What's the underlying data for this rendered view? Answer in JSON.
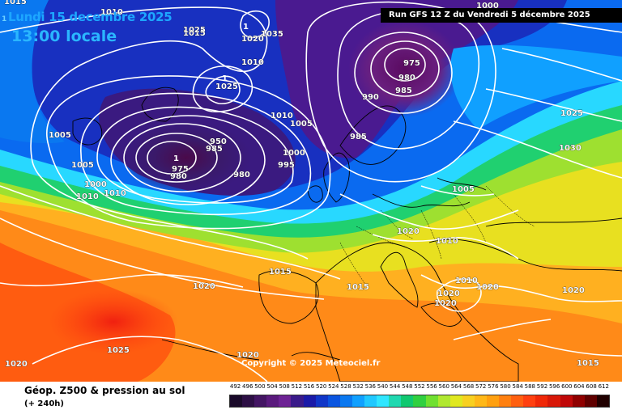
{
  "header": {
    "date_prefix": "1",
    "date_text": "Lundi 15 decembre 2025",
    "time_text": "13:00 locale",
    "run_text": "Run GFS 12 Z du Vendredi 5 décembre 2025"
  },
  "copyright": "Copyright © 2025 Meteociel.fr",
  "legend": {
    "title": "Géop. Z500 & pression au sol",
    "subtitle": "(+ 240h)",
    "values": [
      "492",
      "496",
      "500",
      "504",
      "508",
      "512",
      "516",
      "520",
      "524",
      "528",
      "532",
      "536",
      "540",
      "544",
      "548",
      "552",
      "556",
      "560",
      "564",
      "568",
      "572",
      "576",
      "580",
      "584",
      "588",
      "592",
      "596",
      "600",
      "604",
      "608",
      "612"
    ],
    "colors": [
      "#1a0a2a",
      "#2d0f45",
      "#431563",
      "#5a1a7d",
      "#6d2294",
      "#3a1a8a",
      "#1a1aa8",
      "#1036c8",
      "#0a55e0",
      "#0a78f0",
      "#10a0ff",
      "#20c8ff",
      "#30e6ff",
      "#20d8b0",
      "#10c870",
      "#30d040",
      "#70e030",
      "#b0e830",
      "#e0e820",
      "#f8d020",
      "#ffb818",
      "#ffa010",
      "#ff8010",
      "#ff6010",
      "#ff4010",
      "#f02808",
      "#d81808",
      "#c00808",
      "#900000",
      "#600000",
      "#200000"
    ]
  },
  "isobar_labels": [
    "1010",
    "1015",
    "1035",
    "1010",
    "1025",
    "1020",
    "1005",
    "1000",
    "1015",
    "1025",
    "1010",
    "1005",
    "1000",
    "975",
    "980",
    "985",
    "990",
    "985",
    "1025",
    "1030",
    "1005",
    "975",
    "950",
    "985",
    "980",
    "980",
    "995",
    "1000",
    "1010",
    "1010",
    "1005",
    "1020",
    "1010",
    "1015",
    "1015",
    "1020",
    "1010",
    "1020",
    "1020",
    "1020",
    "1020",
    "1025",
    "1020",
    "1020",
    "1015"
  ]
}
